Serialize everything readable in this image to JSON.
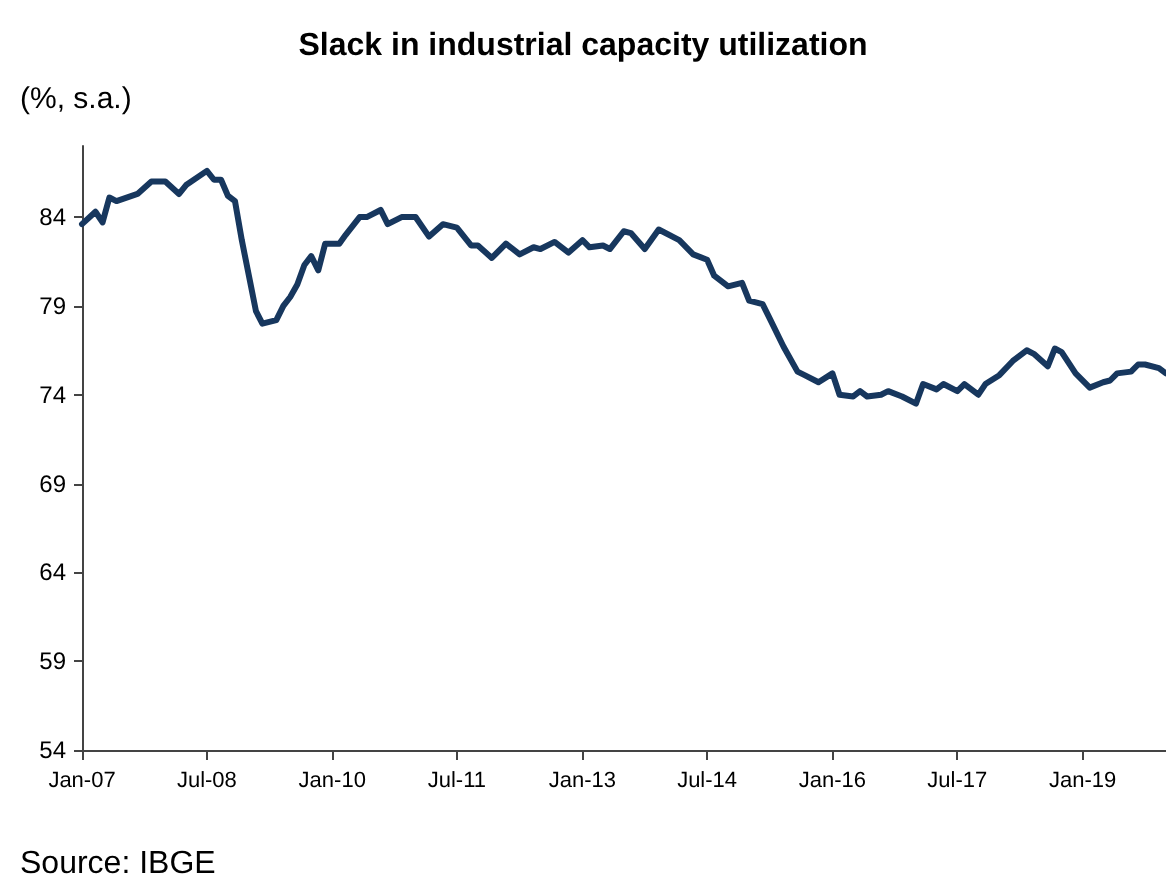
{
  "chart_data": {
    "type": "line",
    "title": "Slack in industrial capacity utilization",
    "ylabel": "(%, s.a.)",
    "annotations": [
      "Source: IBGE"
    ],
    "x": [
      "2007-01",
      "2007-03",
      "2007-04",
      "2007-05",
      "2007-06",
      "2007-09",
      "2007-11",
      "2008-01",
      "2008-03",
      "2008-04",
      "2008-07",
      "2008-08",
      "2008-09",
      "2008-10",
      "2008-11",
      "2008-12",
      "2009-02",
      "2009-03",
      "2009-05",
      "2009-06",
      "2009-07",
      "2009-08",
      "2009-09",
      "2009-10",
      "2009-11",
      "2009-12",
      "2010-02",
      "2010-03",
      "2010-05",
      "2010-06",
      "2010-08",
      "2010-09",
      "2010-11",
      "2011-01",
      "2011-03",
      "2011-05",
      "2011-07",
      "2011-09",
      "2011-10",
      "2011-12",
      "2012-02",
      "2012-04",
      "2012-06",
      "2012-07",
      "2012-09",
      "2012-11",
      "2013-01",
      "2013-02",
      "2013-04",
      "2013-05",
      "2013-07",
      "2013-08",
      "2013-10",
      "2013-12",
      "2014-03",
      "2014-05",
      "2014-07",
      "2014-08",
      "2014-10",
      "2014-12",
      "2015-01",
      "2015-03",
      "2015-04",
      "2015-06",
      "2015-08",
      "2015-09",
      "2015-11",
      "2016-01",
      "2016-02",
      "2016-04",
      "2016-05",
      "2016-06",
      "2016-08",
      "2016-09",
      "2016-11",
      "2017-01",
      "2017-02",
      "2017-04",
      "2017-05",
      "2017-07",
      "2017-08",
      "2017-10",
      "2017-11",
      "2018-01",
      "2018-03",
      "2018-05",
      "2018-06",
      "2018-08",
      "2018-09",
      "2018-10",
      "2018-12",
      "2019-02",
      "2019-04",
      "2019-05",
      "2019-06",
      "2019-08",
      "2019-09",
      "2019-10",
      "2019-12",
      "2020-01"
    ],
    "series": [
      {
        "color": "#17375e",
        "values": [
          83.6,
          84.3,
          83.7,
          85.1,
          84.9,
          85.3,
          86.0,
          86.0,
          85.3,
          85.8,
          86.6,
          86.1,
          86.1,
          85.2,
          84.9,
          82.7,
          78.7,
          78.0,
          78.2,
          79.0,
          79.5,
          80.2,
          81.3,
          81.8,
          81.0,
          82.5,
          82.5,
          83.0,
          84.0,
          84.0,
          84.4,
          83.6,
          84.0,
          84.0,
          82.9,
          83.6,
          83.4,
          82.4,
          82.4,
          81.7,
          82.5,
          81.9,
          82.3,
          82.2,
          82.6,
          82.0,
          82.7,
          82.3,
          82.4,
          82.2,
          83.2,
          83.1,
          82.2,
          83.3,
          82.7,
          81.9,
          81.6,
          80.7,
          80.1,
          80.3,
          79.3,
          79.1,
          78.3,
          76.7,
          75.3,
          75.1,
          74.7,
          75.2,
          74.0,
          73.9,
          74.2,
          73.9,
          74.0,
          74.2,
          73.9,
          73.5,
          74.6,
          74.3,
          74.6,
          74.2,
          74.6,
          74.0,
          74.6,
          75.1,
          75.9,
          76.5,
          76.3,
          75.6,
          76.6,
          76.4,
          75.2,
          74.4,
          74.7,
          74.8,
          75.2,
          75.3,
          75.7,
          75.7,
          75.5,
          75.2
        ]
      }
    ],
    "xlim": [
      "2007-01",
      "2020-01"
    ],
    "xticks": [
      {
        "value": "2007-01",
        "label": "Jan-07"
      },
      {
        "value": "2008-07",
        "label": "Jul-08"
      },
      {
        "value": "2010-01",
        "label": "Jan-10"
      },
      {
        "value": "2011-07",
        "label": "Jul-11"
      },
      {
        "value": "2013-01",
        "label": "Jan-13"
      },
      {
        "value": "2014-07",
        "label": "Jul-14"
      },
      {
        "value": "2016-01",
        "label": "Jan-16"
      },
      {
        "value": "2017-07",
        "label": "Jul-17"
      },
      {
        "value": "2019-01",
        "label": "Jan-19"
      }
    ],
    "ylim": [
      54,
      88
    ],
    "yticks": [
      54,
      59,
      64,
      69,
      74,
      79,
      84
    ],
    "grid": false,
    "marker": "none",
    "line_style": "solid"
  }
}
